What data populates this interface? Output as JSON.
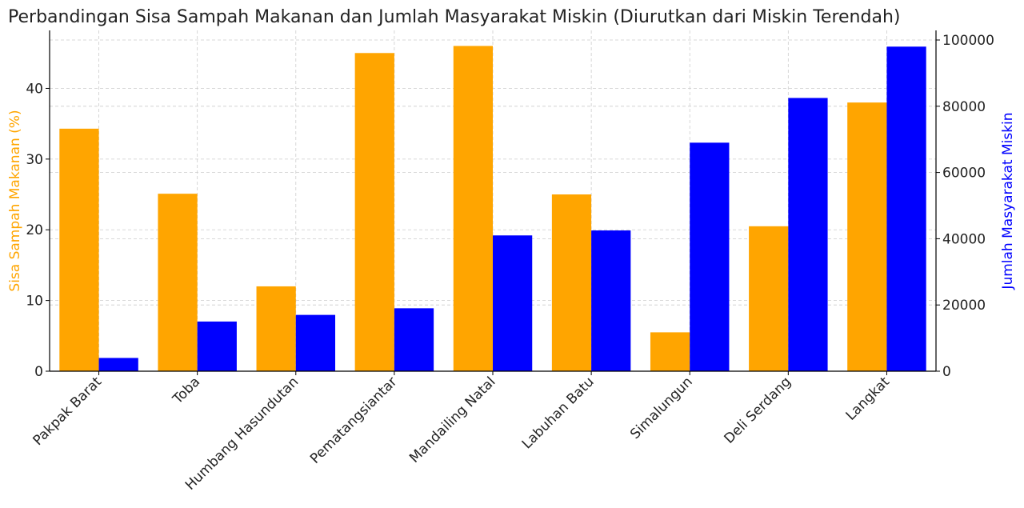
{
  "chart_data": {
    "type": "bar",
    "title": "Perbandingan Sisa Sampah Makanan dan Jumlah Masyarakat Miskin (Diurutkan dari Miskin Terendah)",
    "xlabel": "",
    "categories": [
      "Pakpak Barat",
      "Toba",
      "Humbang Hasundutan",
      "Pematangsiantar",
      "Mandailing Natal",
      "Labuhan Batu",
      "Simalungun",
      "Deli Serdang",
      "Langkat"
    ],
    "series": [
      {
        "name": "Sisa Sampah Makanan (%)",
        "axis": "left",
        "color": "#ffa500",
        "values": [
          34.3,
          25.1,
          12.0,
          45.0,
          46.0,
          25.0,
          5.5,
          20.5,
          38.0
        ]
      },
      {
        "name": "Jumlah Masyarakat Miskin",
        "axis": "right",
        "color": "#0000ff",
        "values": [
          4000,
          15000,
          17000,
          19000,
          41000,
          42500,
          69000,
          82500,
          98000
        ]
      }
    ],
    "left_axis": {
      "label": "Sisa Sampah Makanan (%)",
      "label_color": "#ffa500",
      "ylim": [
        0,
        48.2
      ],
      "ticks": [
        0,
        10,
        20,
        30,
        40
      ],
      "tick_labels": [
        "0",
        "10",
        "20",
        "30",
        "40"
      ]
    },
    "right_axis": {
      "label": "Jumlah Masyarakat Miskin",
      "label_color": "#0000ff",
      "ylim": [
        0,
        102900
      ],
      "ticks": [
        0,
        20000,
        40000,
        60000,
        80000,
        100000
      ],
      "tick_labels": [
        "0",
        "20000",
        "40000",
        "60000",
        "80000",
        "100000"
      ]
    },
    "grid": true,
    "grid_color": "#cccccc"
  }
}
